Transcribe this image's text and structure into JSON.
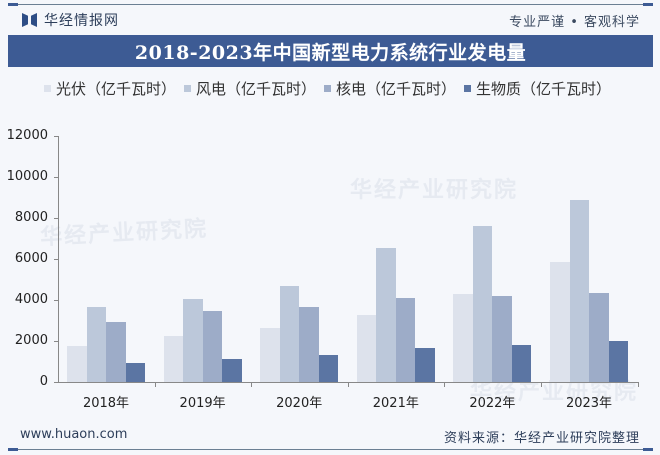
{
  "header": {
    "brand": "华经情报网",
    "slogan": "专业严谨 • 客观科学",
    "title": "2018-2023年中国新型电力系统行业发电量"
  },
  "legend": [
    {
      "label": "光伏（亿千瓦时）",
      "color": "#dde2ec"
    },
    {
      "label": "风电（亿千瓦时）",
      "color": "#bcc8da"
    },
    {
      "label": "核电（亿千瓦时）",
      "color": "#9dacc8"
    },
    {
      "label": "生物质（亿千瓦时）",
      "color": "#5b75a3"
    }
  ],
  "footer": {
    "url": "www.huaon.com",
    "source": "资料来源：华经产业研究院整理"
  },
  "watermarks": [
    "华经产业研究院",
    "华经产业研究院",
    "华经产业研究院"
  ],
  "chart_data": {
    "type": "bar",
    "title": "2018-2023年中国新型电力系统行业发电量",
    "xlabel": "",
    "ylabel": "",
    "categories": [
      "2018年",
      "2019年",
      "2020年",
      "2021年",
      "2022年",
      "2023年"
    ],
    "series": [
      {
        "name": "光伏（亿千瓦时）",
        "color": "#dde2ec",
        "values": [
          1775,
          2240,
          2611,
          3259,
          4276,
          5833
        ]
      },
      {
        "name": "风电（亿千瓦时）",
        "color": "#bcc8da",
        "values": [
          3660,
          4057,
          4665,
          6526,
          7627,
          8858
        ]
      },
      {
        "name": "核电（亿千瓦时）",
        "color": "#9dacc8",
        "values": [
          2944,
          3487,
          3662,
          4075,
          4178,
          4347
        ]
      },
      {
        "name": "生物质（亿千瓦时）",
        "color": "#5b75a3",
        "values": [
          906,
          1111,
          1326,
          1637,
          1824,
          1980
        ]
      }
    ],
    "yticks": [
      "0",
      "2000",
      "4000",
      "6000",
      "8000",
      "10000",
      "12000"
    ],
    "ylim": [
      0,
      12000
    ],
    "grid": false,
    "legend_position": "top"
  }
}
